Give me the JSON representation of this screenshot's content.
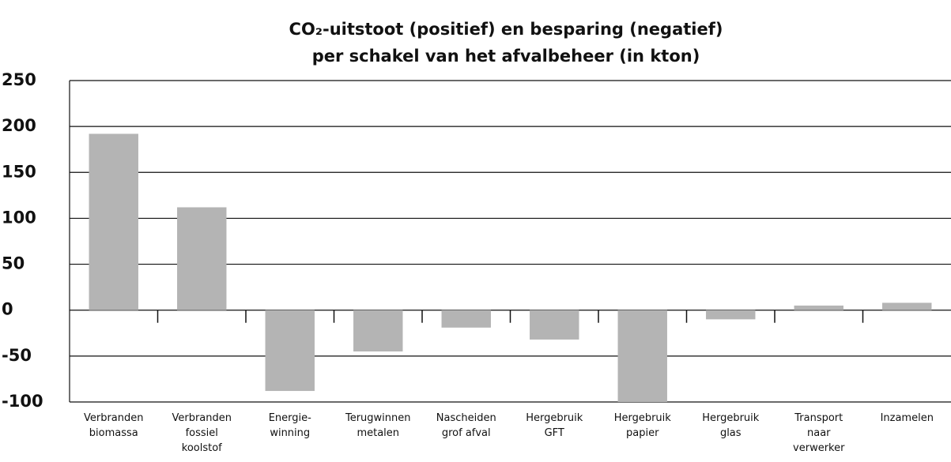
{
  "chart_data": {
    "type": "bar",
    "title": [
      "CO₂-uitstoot (positief) en besparing (negatief)",
      "per schakel van het afvalbeheer (in kton)"
    ],
    "categories": [
      "Verbranden\nbiomassa",
      "Verbranden\nfossiel\nkoolstof",
      "Energie-\nwinning",
      "Terugwinnen\nmetalen",
      "Nascheiden\ngrof afval",
      "Hergebruik\nGFT",
      "Hergebruik\npapier",
      "Hergebruik\nglas",
      "Transport\nnaar\nverwerker",
      "Inzamelen"
    ],
    "values": [
      192,
      112,
      -88,
      -45,
      -19,
      -32,
      -100,
      -10,
      5,
      8
    ],
    "color": "#b4b4b4",
    "ylim": [
      -100,
      250
    ],
    "yticks": [
      -100,
      -50,
      0,
      50,
      100,
      150,
      200,
      250
    ],
    "grid": true
  }
}
